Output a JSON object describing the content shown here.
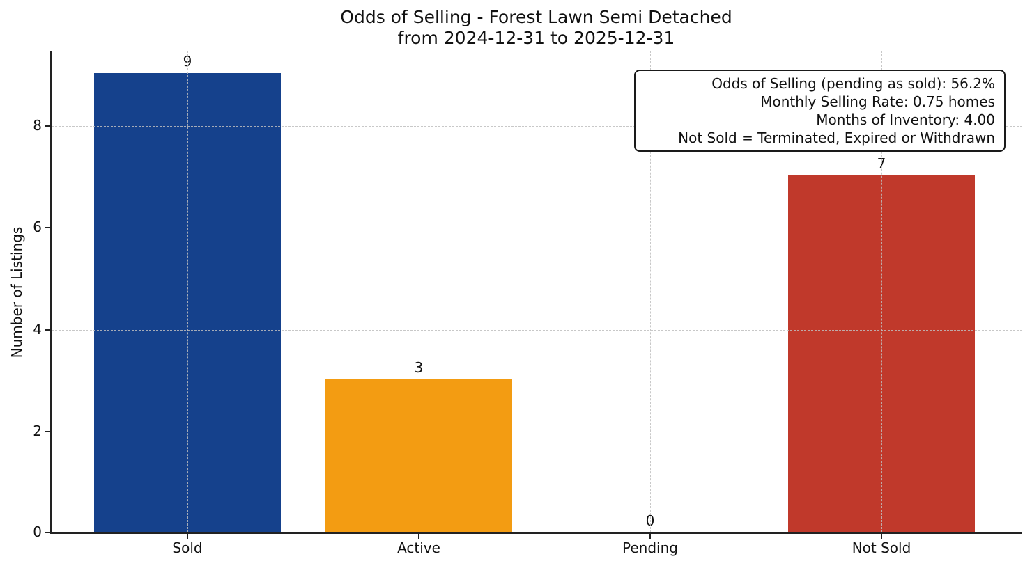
{
  "chart_data": {
    "type": "bar",
    "title": "Odds of Selling - Forest Lawn Semi Detached",
    "subtitle": "from 2024-12-31 to 2025-12-31",
    "ylabel": "Number of Listings",
    "categories": [
      "Sold",
      "Active",
      "Pending",
      "Not Sold"
    ],
    "values": [
      9,
      3,
      0,
      7
    ],
    "bar_colors": [
      "#15418c",
      "#f39c12",
      null,
      "#c0392b"
    ],
    "yticks": [
      "0",
      "2",
      "4",
      "6",
      "8"
    ],
    "ylim": [
      0,
      9.46
    ],
    "grid": "dashed-both-axes-above-bars",
    "legend_position": "none",
    "annotation": {
      "lines": [
        "Odds of Selling (pending as sold): 56.2%",
        "Monthly Selling Rate: 0.75 homes",
        "Months of Inventory: 4.00",
        "Not Sold = Terminated, Expired or Withdrawn"
      ]
    }
  }
}
